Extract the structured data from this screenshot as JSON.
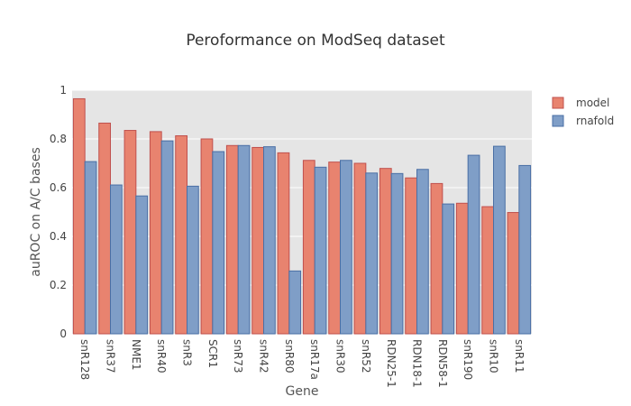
{
  "chart_data": {
    "type": "bar",
    "title": "Peroformance on ModSeq dataset",
    "xlabel": "Gene",
    "ylabel": "auROC on A/C bases",
    "ylim": [
      0,
      1
    ],
    "yticks": [
      0,
      0.2,
      0.4,
      0.6,
      0.8,
      1
    ],
    "ytick_labels": [
      "0",
      "0.2",
      "0.4",
      "0.6",
      "0.8",
      "1"
    ],
    "grid": true,
    "legend_position": "top-right",
    "categories": [
      "snR128",
      "snR37",
      "NME1",
      "snR40",
      "snR3",
      "SCR1",
      "snR73",
      "snR42",
      "snR80",
      "snR17a",
      "snR30",
      "snR52",
      "RDN25-1",
      "RDN18-1",
      "RDN58-1",
      "snR190",
      "snR10",
      "snR11"
    ],
    "series": [
      {
        "name": "model",
        "color": "#e8836f",
        "edge": "#c0504d",
        "values": [
          0.965,
          0.865,
          0.835,
          0.83,
          0.813,
          0.8,
          0.773,
          0.765,
          0.743,
          0.712,
          0.705,
          0.7,
          0.679,
          0.64,
          0.617,
          0.536,
          0.522,
          0.498
        ]
      },
      {
        "name": "rnafold",
        "color": "#7f9ec7",
        "edge": "#4a6fa5",
        "values": [
          0.707,
          0.611,
          0.566,
          0.792,
          0.606,
          0.748,
          0.773,
          0.768,
          0.258,
          0.684,
          0.712,
          0.66,
          0.658,
          0.675,
          0.533,
          0.733,
          0.77,
          0.691
        ]
      }
    ]
  }
}
